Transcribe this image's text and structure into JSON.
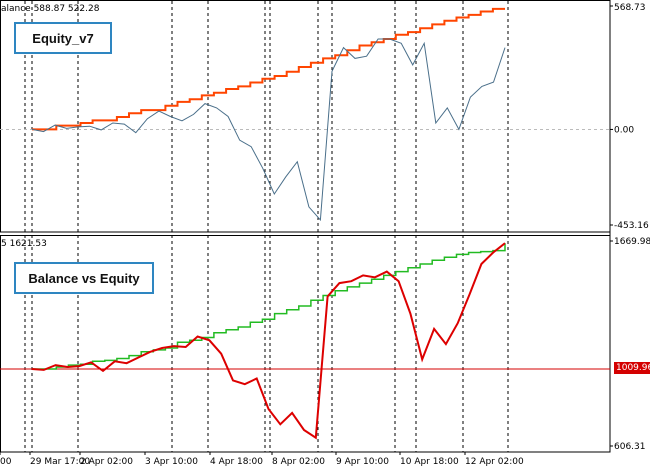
{
  "top_panel": {
    "header": "alance 588.87 522.28",
    "badge": "Equity_v7",
    "y_labels": [
      "568.73",
      "0.00",
      "-453.16"
    ]
  },
  "bottom_panel": {
    "header": "5 1621.53",
    "badge": "Balance vs Equity",
    "y_labels": [
      "1669.98",
      "606.31"
    ],
    "current_value": "1009.96"
  },
  "x_axis": {
    "labels": [
      "00",
      "29 Mar 17:00",
      "2 Apr 02:00",
      "3 Apr 10:00",
      "4 Apr 18:00",
      "8 Apr 02:00",
      "9 Apr 10:00",
      "10 Apr 18:00",
      "12 Apr 02:00"
    ]
  },
  "colors": {
    "balance_top": "#ff4500",
    "equity_top": "#4a6f8a",
    "balance_bottom": "#22bb22",
    "equity_bottom": "#dd0000",
    "badge_border": "#2e86c1"
  },
  "chart_data": [
    {
      "type": "line",
      "title": "Equity_v7",
      "ylim": [
        -453.16,
        568.73
      ],
      "series": [
        {
          "name": "Balance",
          "values": [
            0,
            0,
            18,
            18,
            30,
            42,
            42,
            58,
            75,
            90,
            90,
            110,
            128,
            140,
            158,
            170,
            188,
            200,
            218,
            235,
            248,
            268,
            290,
            310,
            330,
            345,
            368,
            390,
            405,
            420,
            440,
            452,
            470,
            488,
            505,
            520,
            532,
            548,
            560,
            560
          ]
        },
        {
          "values": [
            0,
            -10,
            20,
            5,
            12,
            15,
            -2,
            30,
            25,
            -15,
            50,
            85,
            60,
            40,
            70,
            120,
            100,
            60,
            -50,
            -80,
            -180,
            -300,
            -220,
            -150,
            -360,
            -420,
            270,
            380,
            330,
            340,
            420,
            420,
            400,
            300,
            400,
            30,
            100,
            0,
            150,
            200,
            220,
            380
          ]
        }
      ]
    },
    {
      "type": "line",
      "title": "Balance vs Equity",
      "ylim": [
        606.31,
        1669.98
      ],
      "series": [
        {
          "values": [
            1010,
            1010,
            1020,
            1030,
            1035,
            1050,
            1055,
            1065,
            1080,
            1100,
            1110,
            1120,
            1150,
            1160,
            1175,
            1200,
            1215,
            1230,
            1255,
            1270,
            1300,
            1320,
            1340,
            1370,
            1395,
            1420,
            1440,
            1460,
            1480,
            1500,
            1520,
            1540,
            1560,
            1580,
            1595,
            1610,
            1620,
            1625,
            1630,
            1669
          ]
        },
        {
          "values": [
            1010,
            1005,
            1030,
            1020,
            1025,
            1045,
            1000,
            1050,
            1040,
            1070,
            1100,
            1120,
            1130,
            1125,
            1180,
            1160,
            1090,
            950,
            930,
            960,
            800,
            720,
            780,
            690,
            650,
            1390,
            1460,
            1470,
            1500,
            1490,
            1520,
            1470,
            1300,
            1060,
            1220,
            1140,
            1250,
            1400,
            1560,
            1620,
            1669
          ]
        }
      ]
    }
  ]
}
